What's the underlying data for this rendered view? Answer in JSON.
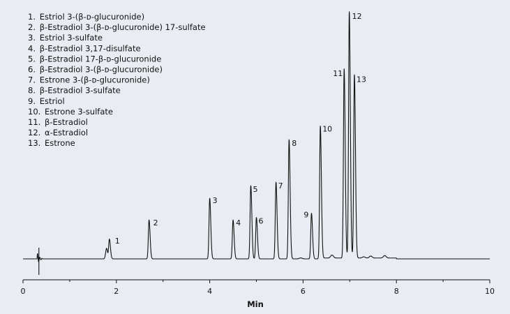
{
  "chart_data": {
    "type": "line",
    "title": "",
    "xlabel": "Min",
    "ylabel": "",
    "xlim": [
      0,
      10
    ],
    "ylim": [
      0,
      100
    ],
    "x_ticks": [
      "0",
      "2",
      "4",
      "6",
      "8",
      "10"
    ],
    "grid": false,
    "legend": {
      "placement": "top-left",
      "entries": [
        "1. Estriol 3-(β-ᴅ-glucuronide)",
        "2. β-Estradiol 3-(β-ᴅ-glucuronide) 17-sulfate",
        "3. Estriol 3-sulfate",
        "4. β-Estradiol 3,17-disulfate",
        "5. β-Estradiol 17-β-ᴅ-glucuronide",
        "6. β-Estradiol 3-(β-ᴅ-glucuronide)",
        "7. Estrone 3-(β-ᴅ-glucuronide)",
        "8. β-Estradiol 3-sulfate",
        "9. Estriol",
        "10. Estrone 3-sulfate",
        "11. β-Estradiol",
        "12. α-Estradiol",
        "13. Estrone"
      ]
    },
    "peaks": [
      {
        "label": "1",
        "x": 1.85,
        "y": 8.0
      },
      {
        "label": "2",
        "x": 2.7,
        "y": 15.8
      },
      {
        "label": "3",
        "x": 4.0,
        "y": 24.6
      },
      {
        "label": "4",
        "x": 4.5,
        "y": 15.8
      },
      {
        "label": "5",
        "x": 4.88,
        "y": 29.7
      },
      {
        "label": "6",
        "x": 5.0,
        "y": 16.8
      },
      {
        "label": "7",
        "x": 5.42,
        "y": 31.1
      },
      {
        "label": "8",
        "x": 5.7,
        "y": 48.4
      },
      {
        "label": "9",
        "x": 6.18,
        "y": 18.5
      },
      {
        "label": "10",
        "x": 6.37,
        "y": 53.9
      },
      {
        "label": "11",
        "x": 6.88,
        "y": 76.8
      },
      {
        "label": "12",
        "x": 6.99,
        "y": 100.0
      },
      {
        "label": "13",
        "x": 7.1,
        "y": 74.4
      }
    ]
  }
}
